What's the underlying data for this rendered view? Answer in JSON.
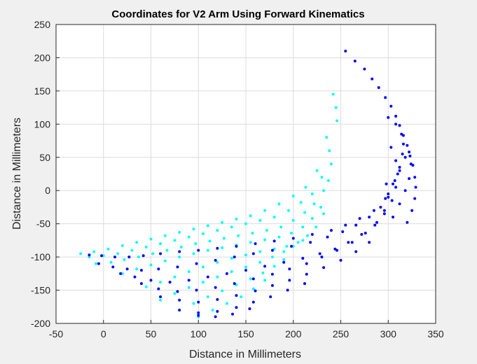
{
  "chart_data": {
    "type": "scatter",
    "title": "Coordinates for V2 Arm Using Forward Kinematics",
    "xlabel": "Distance in Millimeters",
    "ylabel": "Distance in Millimeters",
    "xlim": [
      -50,
      350
    ],
    "ylim": [
      -200,
      250
    ],
    "xticks": [
      -50,
      0,
      50,
      100,
      150,
      200,
      250,
      300,
      350
    ],
    "yticks": [
      -200,
      -150,
      -100,
      -50,
      0,
      50,
      100,
      150,
      200,
      250
    ],
    "grid": true,
    "colors": {
      "cyan": "#00ffff",
      "blue": "#0000ff",
      "background": "#f0f0f0",
      "plot_bg": "#ffffff",
      "grid": "#dcdcdc"
    },
    "series": [
      {
        "color": "#00ffff",
        "x": [
          -24,
          -10,
          5,
          20,
          35,
          50,
          65,
          80,
          95,
          110,
          125,
          140,
          155,
          170,
          185,
          200,
          213,
          225,
          235,
          242,
          -15,
          0,
          15,
          30,
          45,
          60,
          75,
          90,
          105,
          120,
          135,
          150,
          165,
          180,
          195,
          208,
          220,
          230,
          238,
          245,
          -8,
          8,
          22,
          37,
          52,
          67,
          82,
          97,
          112,
          127,
          142,
          157,
          172,
          187,
          200,
          212,
          222,
          232,
          240,
          246,
          20,
          35,
          50,
          65,
          80,
          95,
          110,
          125,
          140,
          155,
          170,
          185,
          198,
          210,
          220,
          229,
          237,
          45,
          60,
          75,
          90,
          105,
          120,
          135,
          150,
          165,
          180,
          193,
          205,
          215,
          224,
          232,
          60,
          75,
          90,
          105,
          120,
          135,
          150,
          165,
          178,
          190,
          200,
          210,
          80,
          95,
          110,
          125,
          140,
          155,
          168,
          180,
          190,
          100,
          115,
          130,
          145,
          158,
          170
        ],
        "y": [
          -95,
          -92,
          -88,
          -83,
          -78,
          -73,
          -68,
          -63,
          -58,
          -53,
          -48,
          -43,
          -38,
          -30,
          -20,
          -8,
          5,
          30,
          80,
          145,
          -100,
          -98,
          -95,
          -90,
          -85,
          -80,
          -75,
          -70,
          -65,
          -60,
          -55,
          -50,
          -45,
          -40,
          -30,
          -18,
          -5,
          20,
          60,
          125,
          -110,
          -108,
          -104,
          -100,
          -95,
          -90,
          -85,
          -80,
          -76,
          -72,
          -68,
          -64,
          -60,
          -55,
          -45,
          -33,
          -20,
          0,
          40,
          105,
          -125,
          -118,
          -112,
          -106,
          -100,
          -95,
          -90,
          -86,
          -82,
          -78,
          -74,
          -70,
          -64,
          -55,
          -42,
          -25,
          15,
          -145,
          -138,
          -130,
          -122,
          -115,
          -108,
          -102,
          -97,
          -92,
          -88,
          -84,
          -78,
          -68,
          -55,
          -35,
          -165,
          -155,
          -146,
          -138,
          -130,
          -122,
          -115,
          -108,
          -100,
          -92,
          -84,
          -75,
          -180,
          -170,
          -160,
          -151,
          -142,
          -133,
          -124,
          -114,
          -104,
          -190,
          -180,
          -170,
          -160,
          -148,
          -135
        ]
      },
      {
        "color": "#0000ff",
        "x": [
          255,
          265,
          275,
          283,
          290,
          297,
          303,
          308,
          312,
          316,
          320,
          323,
          326,
          328,
          329,
          328,
          325,
          320,
          -15,
          -2,
          12,
          27,
          42,
          60,
          80,
          100,
          120,
          140,
          160,
          180,
          200,
          220,
          240,
          255,
          270,
          285,
          297,
          305,
          312,
          318,
          322,
          324,
          322,
          318,
          312,
          305,
          -5,
          10,
          25,
          40,
          58,
          78,
          98,
          118,
          138,
          158,
          178,
          198,
          218,
          236,
          252,
          266,
          280,
          292,
          300,
          307,
          312,
          315,
          316,
          314,
          308,
          300,
          18,
          33,
          50,
          70,
          90,
          110,
          130,
          150,
          170,
          190,
          210,
          228,
          244,
          258,
          272,
          286,
          296,
          304,
          308,
          310,
          308,
          303,
          40,
          58,
          78,
          98,
          118,
          138,
          158,
          178,
          196,
          214,
          230,
          246,
          262,
          276,
          288,
          296,
          300,
          298,
          60,
          80,
          100,
          120,
          140,
          160,
          178,
          196,
          214,
          232,
          250,
          266,
          280,
          80,
          100,
          120,
          140,
          158,
          176,
          194,
          212,
          100,
          118,
          136,
          154
        ],
        "y": [
          210,
          195,
          183,
          168,
          155,
          140,
          127,
          112,
          98,
          83,
          68,
          52,
          38,
          20,
          5,
          -12,
          -30,
          -48,
          -97,
          -98,
          -100,
          -100,
          -98,
          -95,
          -92,
          -90,
          -87,
          -84,
          -80,
          -76,
          -72,
          -66,
          -60,
          -52,
          -42,
          -30,
          -12,
          10,
          30,
          50,
          58,
          40,
          18,
          0,
          -20,
          -40,
          -110,
          -115,
          -118,
          -120,
          -118,
          -115,
          -110,
          -105,
          -100,
          -95,
          -90,
          -84,
          -78,
          -70,
          -62,
          -52,
          -40,
          -25,
          -5,
          15,
          35,
          55,
          70,
          85,
          100,
          110,
          -125,
          -130,
          -135,
          -138,
          -135,
          -130,
          -125,
          -120,
          -114,
          -108,
          -102,
          -95,
          -88,
          -78,
          -66,
          -52,
          -35,
          -15,
          5,
          25,
          45,
          65,
          -140,
          -148,
          -152,
          -150,
          -146,
          -140,
          -133,
          -126,
          -118,
          -110,
          -100,
          -90,
          -78,
          -64,
          -48,
          -30,
          -10,
          10,
          -160,
          -165,
          -168,
          -164,
          -158,
          -151,
          -143,
          -135,
          -126,
          -116,
          -105,
          -92,
          -78,
          -180,
          -184,
          -182,
          -176,
          -168,
          -160,
          -150,
          -140,
          -188,
          -190,
          -186,
          -178
        ]
      }
    ]
  }
}
